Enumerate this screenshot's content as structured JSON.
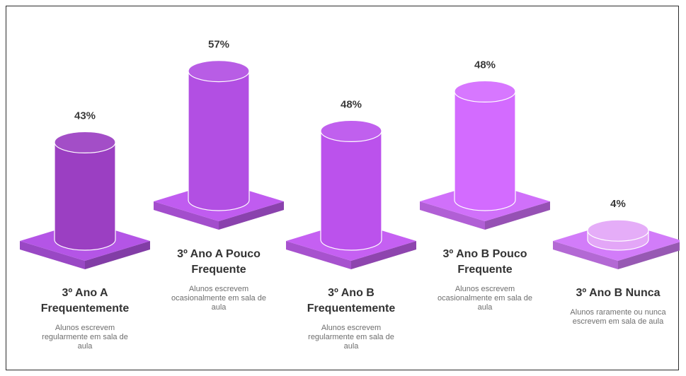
{
  "chart_data": {
    "type": "bar",
    "categories": [
      "3º Ano A Frequentemente",
      "3º Ano A Pouco Frequente",
      "3º Ano B Frequentemente",
      "3º Ano B Pouco Frequente",
      "3º Ano B Nunca"
    ],
    "descriptions": [
      "Alunos escrevem regularmente em sala de aula",
      "Alunos escrevem ocasionalmente em sala de aula",
      "Alunos escrevem regularmente em sala de aula",
      "Alunos escrevem ocasionalmente em sala de aula",
      "Alunos raramente ou nunca escrevem em sala de aula"
    ],
    "values": [
      43,
      57,
      48,
      48,
      4
    ],
    "value_labels": [
      "43%",
      "57%",
      "48%",
      "48%",
      "4%"
    ],
    "unit": "%",
    "ylim": [
      0,
      100
    ],
    "grid": false,
    "legend": "none",
    "colors": [
      "#9b3fc2",
      "#b24fe3",
      "#bb52ec",
      "#d36bff",
      "#e3a6f7"
    ],
    "plate_colors": [
      "#b455e6",
      "#c05cf0",
      "#c560f2",
      "#d070fa",
      "#d27cf9"
    ]
  }
}
